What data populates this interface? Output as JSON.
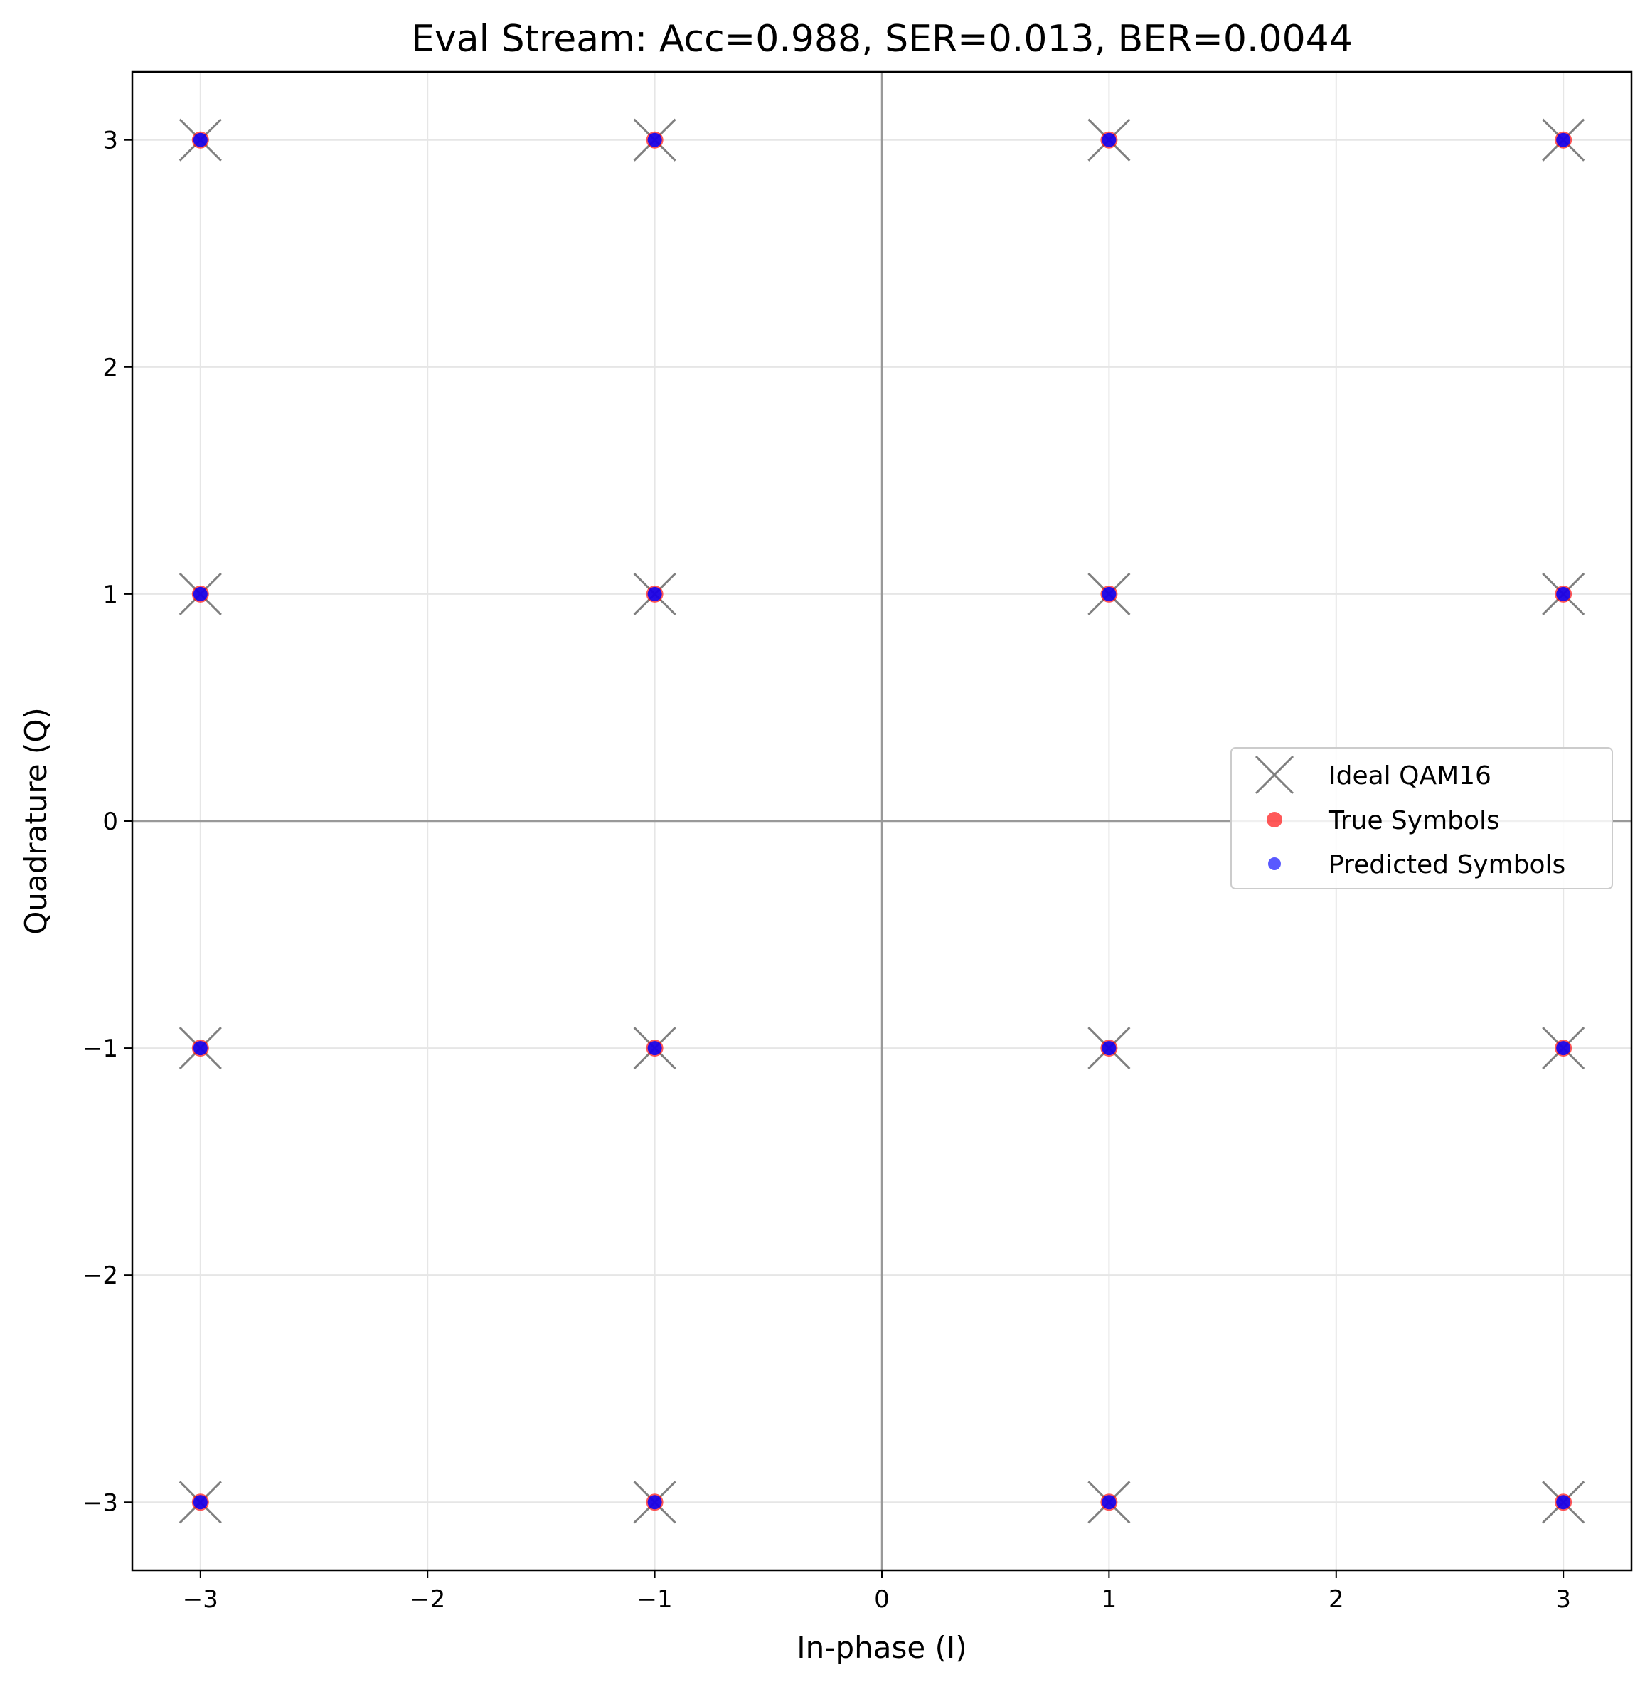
{
  "chart_data": {
    "type": "scatter",
    "title": "Eval Stream: Acc=0.988, SER=0.013, BER=0.0044",
    "xlabel": "In-phase (I)",
    "ylabel": "Quadrature (Q)",
    "xlim": [
      -3.3,
      3.3
    ],
    "ylim": [
      -3.3,
      3.3
    ],
    "xticks": [
      -3,
      -2,
      -1,
      0,
      1,
      2,
      3
    ],
    "yticks": [
      -3,
      -2,
      -1,
      0,
      1,
      2,
      3
    ],
    "xtick_labels": [
      "−3",
      "−2",
      "−1",
      "0",
      "1",
      "2",
      "3"
    ],
    "ytick_labels": [
      "−3",
      "−2",
      "−1",
      "0",
      "1",
      "2",
      "3"
    ],
    "grid": true,
    "legend_position": "center-right",
    "reference_lines": {
      "x": 0,
      "y": 0
    },
    "series": [
      {
        "name": "Ideal QAM16",
        "marker": "x",
        "color": "#808080",
        "points": [
          [
            -3,
            -3
          ],
          [
            -3,
            -1
          ],
          [
            -3,
            1
          ],
          [
            -3,
            3
          ],
          [
            -1,
            -3
          ],
          [
            -1,
            -1
          ],
          [
            -1,
            1
          ],
          [
            -1,
            3
          ],
          [
            1,
            -3
          ],
          [
            1,
            -1
          ],
          [
            1,
            1
          ],
          [
            1,
            3
          ],
          [
            3,
            -3
          ],
          [
            3,
            -1
          ],
          [
            3,
            1
          ],
          [
            3,
            3
          ]
        ]
      },
      {
        "name": "True Symbols",
        "marker": "circle",
        "color": "#ff0000",
        "points": [
          [
            -3,
            -3
          ],
          [
            -3,
            -1
          ],
          [
            -3,
            1
          ],
          [
            -3,
            3
          ],
          [
            -1,
            -3
          ],
          [
            -1,
            -1
          ],
          [
            -1,
            1
          ],
          [
            -1,
            3
          ],
          [
            1,
            -3
          ],
          [
            1,
            -1
          ],
          [
            1,
            1
          ],
          [
            1,
            3
          ],
          [
            3,
            -3
          ],
          [
            3,
            -1
          ],
          [
            3,
            1
          ],
          [
            3,
            3
          ]
        ]
      },
      {
        "name": "Predicted Symbols",
        "marker": "circle",
        "color": "#0000ff",
        "points": [
          [
            -3,
            -3
          ],
          [
            -3,
            -1
          ],
          [
            -3,
            1
          ],
          [
            -3,
            3
          ],
          [
            -1,
            -3
          ],
          [
            -1,
            -1
          ],
          [
            -1,
            1
          ],
          [
            -1,
            3
          ],
          [
            1,
            -3
          ],
          [
            1,
            -1
          ],
          [
            1,
            1
          ],
          [
            1,
            3
          ],
          [
            3,
            -3
          ],
          [
            3,
            -1
          ],
          [
            3,
            1
          ],
          [
            3,
            3
          ]
        ]
      }
    ]
  }
}
